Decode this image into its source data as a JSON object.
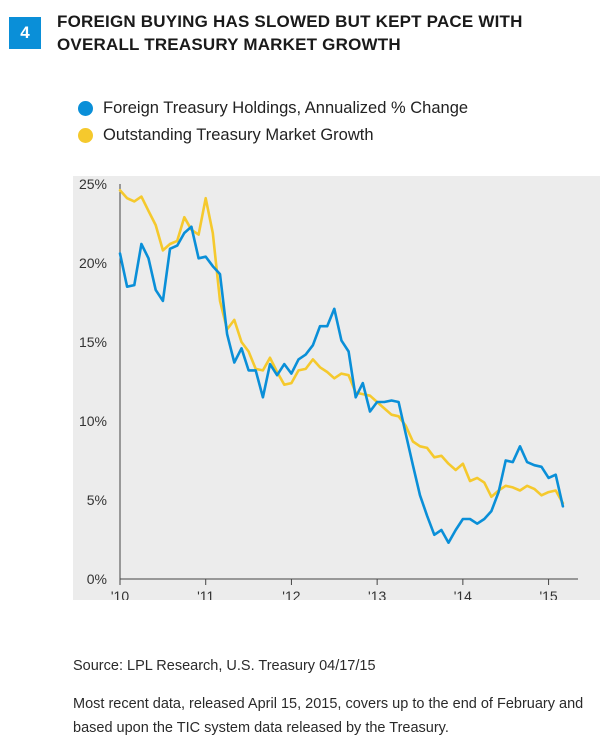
{
  "figure_number": "4",
  "title": "Foreign Buying Has Slowed but Kept Pace with Overall Treasury Market Growth",
  "source": "Source: LPL Research, U.S. Treasury    04/17/15",
  "note": "Most recent data, released April 15, 2015, covers up to the end of February and based upon the TIC system data released by the Treasury.",
  "chart_data": {
    "type": "line",
    "title": "Foreign Buying Has Slowed but Kept Pace with Overall Treasury Market Growth",
    "xlabel": "",
    "ylabel": "",
    "x_ticks": [
      "'10",
      "'11",
      "'12",
      "'13",
      "'14",
      "'15"
    ],
    "x_tick_values": [
      2010,
      2011,
      2012,
      2013,
      2014,
      2015
    ],
    "y_ticks": [
      "0%",
      "5%",
      "10%",
      "15%",
      "20%",
      "25%"
    ],
    "y_tick_values": [
      0,
      5,
      10,
      15,
      20,
      25
    ],
    "xlim": [
      2010,
      2015.25
    ],
    "ylim": [
      0,
      25
    ],
    "grid": false,
    "legend_position": "top-left",
    "background": "#ececec",
    "series": [
      {
        "name": "Foreign Treasury Holdings, Annualized % Change",
        "color": "#0a8fd8",
        "points": [
          [
            2010.0,
            20.6
          ],
          [
            2010.083,
            18.5
          ],
          [
            2010.167,
            18.6
          ],
          [
            2010.25,
            21.2
          ],
          [
            2010.333,
            20.3
          ],
          [
            2010.417,
            18.3
          ],
          [
            2010.5,
            17.6
          ],
          [
            2010.583,
            20.9
          ],
          [
            2010.667,
            21.1
          ],
          [
            2010.75,
            21.9
          ],
          [
            2010.833,
            22.3
          ],
          [
            2010.917,
            20.3
          ],
          [
            2011.0,
            20.4
          ],
          [
            2011.083,
            19.8
          ],
          [
            2011.167,
            19.3
          ],
          [
            2011.25,
            15.5
          ],
          [
            2011.333,
            13.7
          ],
          [
            2011.417,
            14.6
          ],
          [
            2011.5,
            13.2
          ],
          [
            2011.583,
            13.2
          ],
          [
            2011.667,
            11.5
          ],
          [
            2011.75,
            13.6
          ],
          [
            2011.833,
            12.9
          ],
          [
            2011.917,
            13.6
          ],
          [
            2012.0,
            13.0
          ],
          [
            2012.083,
            13.9
          ],
          [
            2012.167,
            14.2
          ],
          [
            2012.25,
            14.8
          ],
          [
            2012.333,
            16.0
          ],
          [
            2012.417,
            16.0
          ],
          [
            2012.5,
            17.1
          ],
          [
            2012.583,
            15.1
          ],
          [
            2012.667,
            14.4
          ],
          [
            2012.75,
            11.5
          ],
          [
            2012.833,
            12.4
          ],
          [
            2012.917,
            10.6
          ],
          [
            2013.0,
            11.2
          ],
          [
            2013.083,
            11.2
          ],
          [
            2013.167,
            11.3
          ],
          [
            2013.25,
            11.2
          ],
          [
            2013.333,
            9.2
          ],
          [
            2013.417,
            7.2
          ],
          [
            2013.5,
            5.3
          ],
          [
            2013.583,
            4.0
          ],
          [
            2013.667,
            2.8
          ],
          [
            2013.75,
            3.1
          ],
          [
            2013.833,
            2.3
          ],
          [
            2013.917,
            3.1
          ],
          [
            2014.0,
            3.8
          ],
          [
            2014.083,
            3.8
          ],
          [
            2014.167,
            3.5
          ],
          [
            2014.25,
            3.8
          ],
          [
            2014.333,
            4.3
          ],
          [
            2014.417,
            5.5
          ],
          [
            2014.5,
            7.5
          ],
          [
            2014.583,
            7.4
          ],
          [
            2014.667,
            8.4
          ],
          [
            2014.75,
            7.4
          ],
          [
            2014.833,
            7.2
          ],
          [
            2014.917,
            7.1
          ],
          [
            2015.0,
            6.4
          ],
          [
            2015.083,
            6.6
          ],
          [
            2015.167,
            4.6
          ]
        ]
      },
      {
        "name": "Outstanding Treasury Market Growth",
        "color": "#f5c92d",
        "points": [
          [
            2010.0,
            24.6
          ],
          [
            2010.083,
            24.1
          ],
          [
            2010.167,
            23.9
          ],
          [
            2010.25,
            24.2
          ],
          [
            2010.333,
            23.3
          ],
          [
            2010.417,
            22.4
          ],
          [
            2010.5,
            20.8
          ],
          [
            2010.583,
            21.2
          ],
          [
            2010.667,
            21.4
          ],
          [
            2010.75,
            22.9
          ],
          [
            2010.833,
            22.1
          ],
          [
            2010.917,
            21.8
          ],
          [
            2011.0,
            24.1
          ],
          [
            2011.083,
            21.9
          ],
          [
            2011.167,
            17.6
          ],
          [
            2011.25,
            15.8
          ],
          [
            2011.333,
            16.4
          ],
          [
            2011.417,
            15.0
          ],
          [
            2011.5,
            14.4
          ],
          [
            2011.583,
            13.3
          ],
          [
            2011.667,
            13.2
          ],
          [
            2011.75,
            14.0
          ],
          [
            2011.833,
            13.1
          ],
          [
            2011.917,
            12.3
          ],
          [
            2012.0,
            12.4
          ],
          [
            2012.083,
            13.2
          ],
          [
            2012.167,
            13.3
          ],
          [
            2012.25,
            13.9
          ],
          [
            2012.333,
            13.4
          ],
          [
            2012.417,
            13.1
          ],
          [
            2012.5,
            12.7
          ],
          [
            2012.583,
            13.0
          ],
          [
            2012.667,
            12.9
          ],
          [
            2012.75,
            11.8
          ],
          [
            2012.833,
            11.7
          ],
          [
            2012.917,
            11.6
          ],
          [
            2013.0,
            11.2
          ],
          [
            2013.083,
            10.8
          ],
          [
            2013.167,
            10.4
          ],
          [
            2013.25,
            10.3
          ],
          [
            2013.333,
            9.7
          ],
          [
            2013.417,
            8.7
          ],
          [
            2013.5,
            8.4
          ],
          [
            2013.583,
            8.3
          ],
          [
            2013.667,
            7.7
          ],
          [
            2013.75,
            7.8
          ],
          [
            2013.833,
            7.3
          ],
          [
            2013.917,
            6.9
          ],
          [
            2014.0,
            7.3
          ],
          [
            2014.083,
            6.2
          ],
          [
            2014.167,
            6.4
          ],
          [
            2014.25,
            6.1
          ],
          [
            2014.333,
            5.2
          ],
          [
            2014.417,
            5.6
          ],
          [
            2014.5,
            5.9
          ],
          [
            2014.583,
            5.8
          ],
          [
            2014.667,
            5.6
          ],
          [
            2014.75,
            5.9
          ],
          [
            2014.833,
            5.7
          ],
          [
            2014.917,
            5.3
          ],
          [
            2015.0,
            5.5
          ],
          [
            2015.083,
            5.6
          ],
          [
            2015.167,
            4.8
          ]
        ]
      }
    ]
  }
}
